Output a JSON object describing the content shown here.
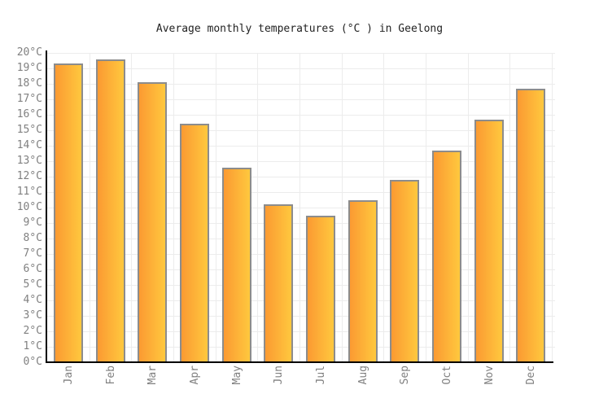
{
  "chart_data": {
    "type": "bar",
    "title": "Average monthly temperatures (°C ) in Geelong",
    "categories": [
      "Jan",
      "Feb",
      "Mar",
      "Apr",
      "May",
      "Jun",
      "Jul",
      "Aug",
      "Sep",
      "Oct",
      "Nov",
      "Dec"
    ],
    "values": [
      19.3,
      19.6,
      18.1,
      15.4,
      12.6,
      10.2,
      9.5,
      10.5,
      11.8,
      13.7,
      15.7,
      17.7
    ],
    "series_name": "Average monthly temperature",
    "unit": "°C",
    "xlabel": "",
    "ylabel": "",
    "ylim": [
      0,
      20
    ],
    "ytick_step": 1,
    "yticks": [
      "0°C",
      "1°C",
      "2°C",
      "3°C",
      "4°C",
      "5°C",
      "6°C",
      "7°C",
      "8°C",
      "9°C",
      "10°C",
      "11°C",
      "12°C",
      "13°C",
      "14°C",
      "15°C",
      "16°C",
      "17°C",
      "18°C",
      "19°C",
      "20°C"
    ],
    "grid": "on",
    "legend_position": "none",
    "colors": {
      "bar_gradient_left": "#fb9a32",
      "bar_gradient_right": "#ffc83e",
      "bar_border": "#8c8c8c",
      "grid_line": "#ececec",
      "axis_line": "#000000",
      "tick_label": "#808080",
      "title_text": "#222222",
      "background": "#ffffff"
    }
  }
}
